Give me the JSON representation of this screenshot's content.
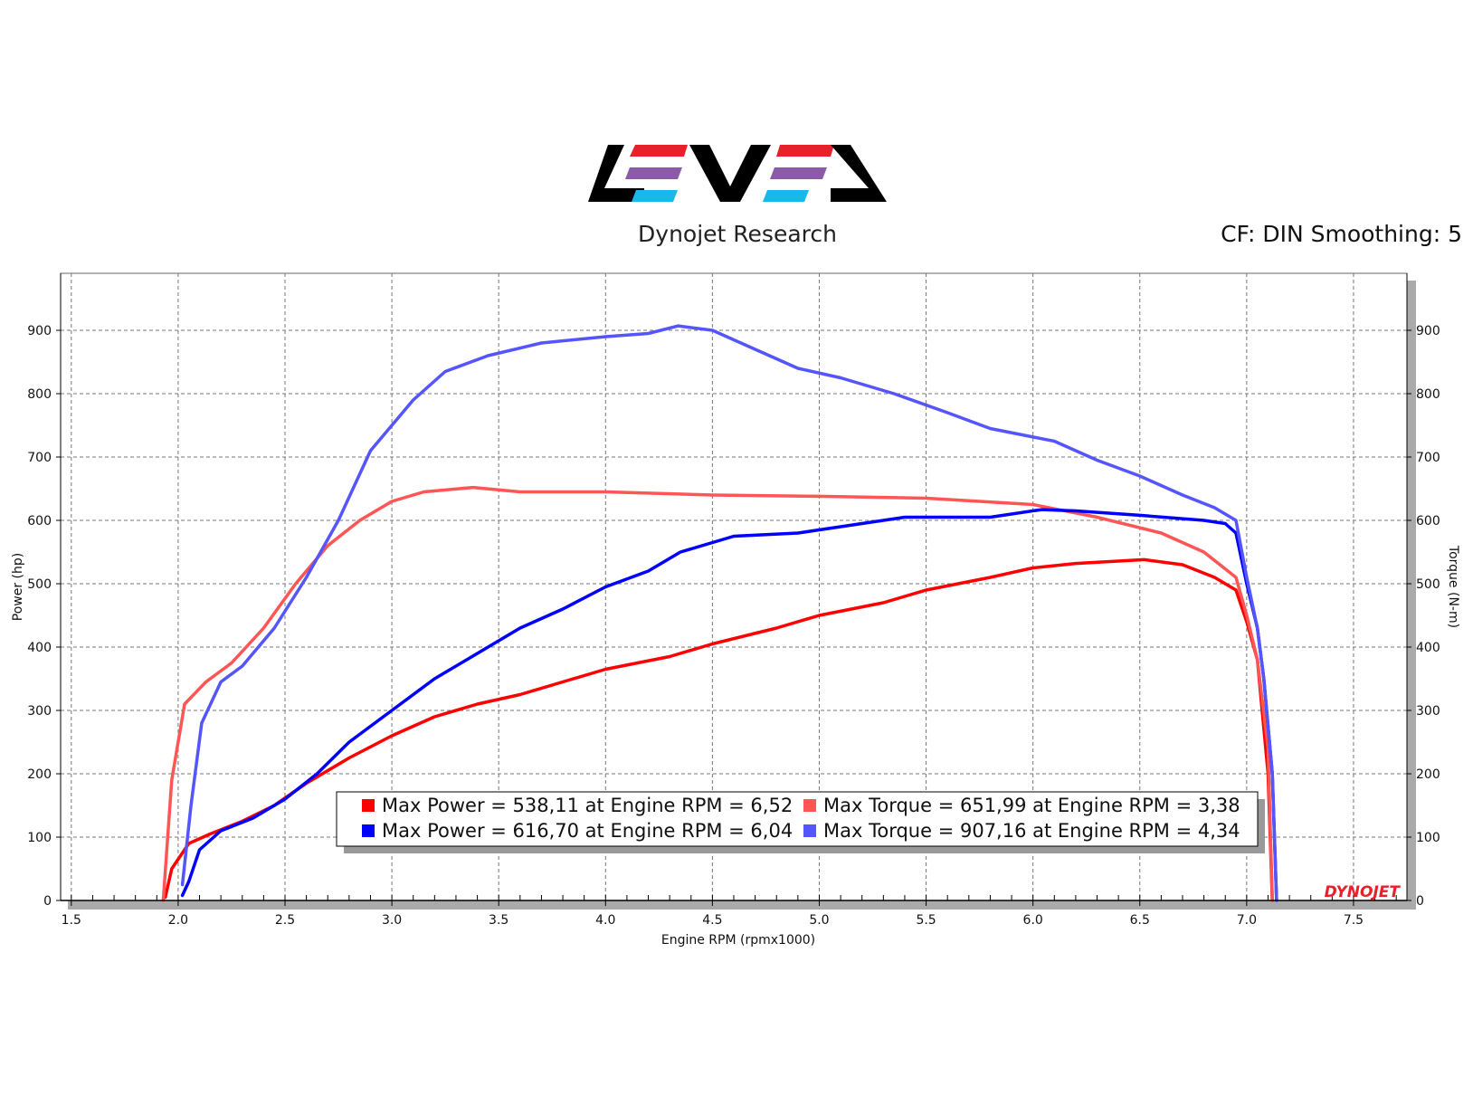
{
  "header": {
    "subtitle": "Dynojet Research",
    "cf_text": "CF: DIN Smoothing: 5",
    "logo_name": "LEVEL logo",
    "watermark": "DYNOJET"
  },
  "colors": {
    "run1_power": "#ff0000",
    "run1_torque": "#ff5555",
    "run2_power": "#0000ff",
    "run2_torque": "#5555ff",
    "logo_red": "#e8202a",
    "logo_purple": "#8c5aa6",
    "logo_cyan": "#1ab8ea",
    "logo_black": "#000000"
  },
  "chart_data": {
    "type": "line",
    "xlabel": "Engine RPM (rpmx1000)",
    "ylabel": "Power (hp)",
    "y2label": "Torque (N-m)",
    "xlim": [
      1.45,
      7.75
    ],
    "ylim": [
      0,
      990
    ],
    "y2lim": [
      0,
      990
    ],
    "x_ticks": [
      "1.5",
      "2.0",
      "2.5",
      "3.0",
      "3.5",
      "4.0",
      "4.5",
      "5.0",
      "5.5",
      "6.0",
      "6.5",
      "7.0",
      "7.5"
    ],
    "y_ticks": [
      "0",
      "100",
      "200",
      "300",
      "400",
      "500",
      "600",
      "700",
      "800",
      "900"
    ],
    "y2_ticks": [
      "0",
      "100",
      "200",
      "300",
      "400",
      "500",
      "600",
      "700",
      "800",
      "900"
    ],
    "grid": true,
    "legend_position": "bottom-center",
    "legend": [
      {
        "label": "Max Power = 538,11 at Engine RPM = 6,52",
        "color": "#ff0000"
      },
      {
        "label": "Max Torque = 651,99 at Engine RPM = 3,38",
        "color": "#ff5555"
      },
      {
        "label": "Max Power = 616,70 at Engine RPM = 6,04",
        "color": "#0000ff"
      },
      {
        "label": "Max Torque = 907,16 at Engine RPM = 4,34",
        "color": "#5555ff"
      }
    ],
    "series": [
      {
        "name": "Max Power = 538,11 at Engine RPM = 6,52",
        "axis": "left",
        "color": "#ff0000",
        "points": [
          [
            1.94,
            5
          ],
          [
            1.97,
            50
          ],
          [
            2.05,
            90
          ],
          [
            2.15,
            105
          ],
          [
            2.3,
            125
          ],
          [
            2.45,
            150
          ],
          [
            2.6,
            185
          ],
          [
            2.8,
            225
          ],
          [
            3.0,
            260
          ],
          [
            3.2,
            290
          ],
          [
            3.4,
            310
          ],
          [
            3.6,
            325
          ],
          [
            3.8,
            345
          ],
          [
            4.0,
            365
          ],
          [
            4.3,
            385
          ],
          [
            4.5,
            405
          ],
          [
            4.8,
            430
          ],
          [
            5.0,
            450
          ],
          [
            5.3,
            470
          ],
          [
            5.5,
            490
          ],
          [
            5.8,
            510
          ],
          [
            6.0,
            525
          ],
          [
            6.2,
            532
          ],
          [
            6.52,
            538
          ],
          [
            6.7,
            530
          ],
          [
            6.85,
            510
          ],
          [
            6.95,
            490
          ],
          [
            7.0,
            440
          ],
          [
            7.05,
            380
          ],
          [
            7.1,
            200
          ],
          [
            7.12,
            0
          ]
        ]
      },
      {
        "name": "Max Torque = 651,99 at Engine RPM = 3,38",
        "axis": "right",
        "color": "#ff5555",
        "points": [
          [
            1.93,
            0
          ],
          [
            1.97,
            190
          ],
          [
            2.03,
            310
          ],
          [
            2.13,
            345
          ],
          [
            2.25,
            375
          ],
          [
            2.4,
            430
          ],
          [
            2.55,
            500
          ],
          [
            2.7,
            560
          ],
          [
            2.85,
            600
          ],
          [
            3.0,
            630
          ],
          [
            3.15,
            645
          ],
          [
            3.38,
            652
          ],
          [
            3.6,
            645
          ],
          [
            4.0,
            645
          ],
          [
            4.5,
            640
          ],
          [
            5.0,
            638
          ],
          [
            5.5,
            635
          ],
          [
            6.0,
            625
          ],
          [
            6.3,
            605
          ],
          [
            6.6,
            580
          ],
          [
            6.8,
            550
          ],
          [
            6.95,
            510
          ],
          [
            7.0,
            450
          ],
          [
            7.05,
            380
          ],
          [
            7.1,
            240
          ],
          [
            7.12,
            0
          ]
        ]
      },
      {
        "name": "Max Power = 616,70 at Engine RPM = 6,04",
        "axis": "left",
        "color": "#0000ff",
        "points": [
          [
            2.02,
            8
          ],
          [
            2.05,
            30
          ],
          [
            2.1,
            80
          ],
          [
            2.2,
            110
          ],
          [
            2.35,
            130
          ],
          [
            2.5,
            160
          ],
          [
            2.65,
            200
          ],
          [
            2.8,
            250
          ],
          [
            3.0,
            300
          ],
          [
            3.2,
            350
          ],
          [
            3.4,
            390
          ],
          [
            3.6,
            430
          ],
          [
            3.8,
            460
          ],
          [
            4.0,
            495
          ],
          [
            4.2,
            520
          ],
          [
            4.35,
            550
          ],
          [
            4.6,
            575
          ],
          [
            4.9,
            580
          ],
          [
            5.1,
            590
          ],
          [
            5.4,
            605
          ],
          [
            5.8,
            605
          ],
          [
            6.04,
            617
          ],
          [
            6.2,
            615
          ],
          [
            6.5,
            608
          ],
          [
            6.8,
            600
          ],
          [
            6.9,
            595
          ],
          [
            6.95,
            580
          ],
          [
            7.0,
            500
          ],
          [
            7.05,
            430
          ],
          [
            7.08,
            350
          ],
          [
            7.12,
            200
          ],
          [
            7.14,
            0
          ]
        ]
      },
      {
        "name": "Max Torque = 907,16 at Engine RPM = 4,34",
        "axis": "right",
        "color": "#5555ff",
        "points": [
          [
            2.02,
            25
          ],
          [
            2.06,
            150
          ],
          [
            2.11,
            280
          ],
          [
            2.2,
            345
          ],
          [
            2.3,
            370
          ],
          [
            2.45,
            430
          ],
          [
            2.6,
            510
          ],
          [
            2.75,
            600
          ],
          [
            2.9,
            710
          ],
          [
            3.1,
            790
          ],
          [
            3.25,
            835
          ],
          [
            3.45,
            860
          ],
          [
            3.7,
            880
          ],
          [
            4.0,
            890
          ],
          [
            4.2,
            895
          ],
          [
            4.34,
            907
          ],
          [
            4.5,
            900
          ],
          [
            4.7,
            870
          ],
          [
            4.9,
            840
          ],
          [
            5.1,
            825
          ],
          [
            5.35,
            800
          ],
          [
            5.6,
            770
          ],
          [
            5.8,
            745
          ],
          [
            6.1,
            725
          ],
          [
            6.3,
            695
          ],
          [
            6.5,
            670
          ],
          [
            6.7,
            640
          ],
          [
            6.85,
            620
          ],
          [
            6.95,
            600
          ],
          [
            7.0,
            510
          ],
          [
            7.05,
            430
          ],
          [
            7.08,
            350
          ],
          [
            7.12,
            200
          ],
          [
            7.14,
            0
          ]
        ]
      }
    ]
  }
}
